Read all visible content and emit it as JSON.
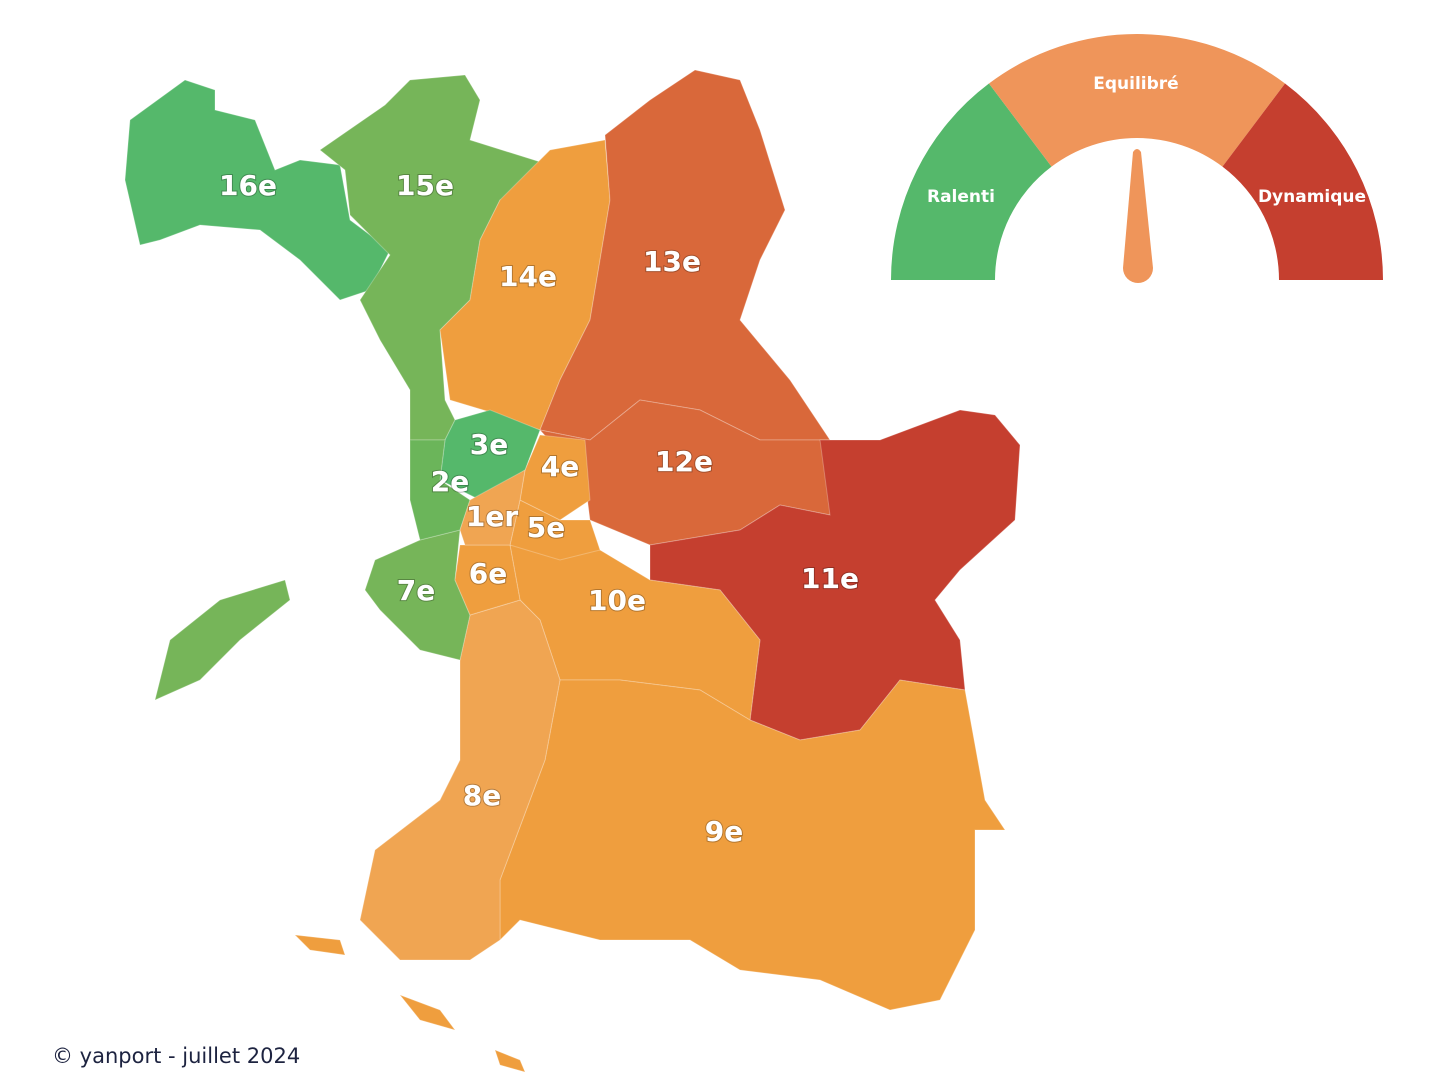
{
  "map": {
    "districts": [
      {
        "label": "16e",
        "color": "#55b86b"
      },
      {
        "label": "15e",
        "color": "#76b559"
      },
      {
        "label": "14e",
        "color": "#ef9e3e"
      },
      {
        "label": "13e",
        "color": "#d9683a"
      },
      {
        "label": "12e",
        "color": "#d9683a"
      },
      {
        "label": "11e",
        "color": "#c53f2f"
      },
      {
        "label": "10e",
        "color": "#ef9e3e"
      },
      {
        "label": "9e",
        "color": "#ef9e3e"
      },
      {
        "label": "8e",
        "color": "#f0a552"
      },
      {
        "label": "7e",
        "color": "#76b559"
      },
      {
        "label": "6e",
        "color": "#ef9e3e"
      },
      {
        "label": "5e",
        "color": "#ef9e3e"
      },
      {
        "label": "4e",
        "color": "#ef9e3e"
      },
      {
        "label": "3e",
        "color": "#55b86b"
      },
      {
        "label": "2e",
        "color": "#6bb55a"
      },
      {
        "label": "1er",
        "color": "#f0a552"
      }
    ]
  },
  "gauge": {
    "segments": [
      {
        "label": "Ralenti",
        "color": "#55b86b"
      },
      {
        "label": "Equilibré",
        "color": "#ef955a"
      },
      {
        "label": "Dynamique",
        "color": "#c53f2f"
      }
    ],
    "needle_color": "#ef955a"
  },
  "footer": "© yanport - juillet 2024"
}
